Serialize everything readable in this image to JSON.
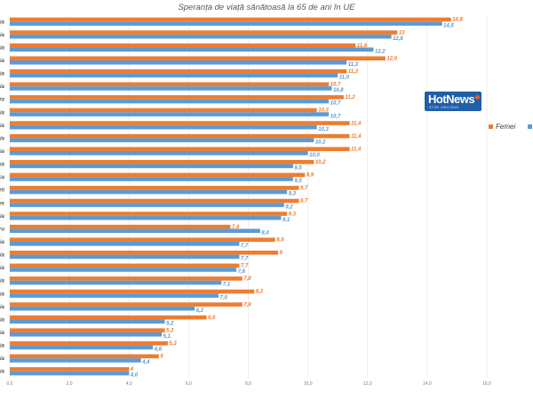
{
  "chart_data": {
    "type": "bar",
    "orientation": "horizontal",
    "title": "Speranța de viață sănătoasă la 65 de ani în UE",
    "series": [
      {
        "name": "Femei",
        "color": "#ed7d31",
        "values": [
          14.8,
          13,
          11.6,
          12.6,
          11.3,
          10.7,
          11.2,
          10.3,
          11.4,
          11.4,
          11.4,
          10.2,
          9.9,
          9.7,
          9.7,
          9.3,
          7.4,
          8.9,
          9,
          7.7,
          7.8,
          8.2,
          7.8,
          6.6,
          5.2,
          5.3,
          5.0,
          4.0
        ]
      },
      {
        "name": "B",
        "color": "#5b9bd5",
        "values": [
          14.5,
          12.8,
          12.2,
          11.3,
          11.0,
          10.8,
          10.7,
          10.7,
          10.3,
          10.2,
          10.0,
          9.5,
          9.5,
          9.3,
          9.2,
          9.1,
          8.4,
          7.7,
          7.7,
          7.6,
          7.1,
          7.0,
          6.2,
          5.2,
          5.1,
          4.8,
          4.4,
          4.0
        ]
      }
    ],
    "labels": {
      "female": [
        "14,8",
        "13",
        "11,6",
        "12,6",
        "11,3",
        "10,7",
        "11,2",
        "10,3",
        "11,4",
        "11,4",
        "11,4",
        "10,2",
        "9,9",
        "9,7",
        "9,7",
        "9,3",
        "7,4",
        "8,9",
        "9",
        "7,7",
        "7,8",
        "8,2",
        "7,8",
        "6,6",
        "5,2",
        "5,3",
        "5",
        "4"
      ],
      "male": [
        "14,5",
        "12,8",
        "12,2",
        "11,3",
        "11,0",
        "10,8",
        "10,7",
        "10,7",
        "10,3",
        "10,2",
        "10,0",
        "9,5",
        "9,5",
        "9,3",
        "9,2",
        "9,1",
        "8,4",
        "7,7",
        "7,7",
        "7,6",
        "7,1",
        "7,0",
        "6,2",
        "5,2",
        "5,1",
        "4,8",
        "4,4",
        "4,0"
      ]
    },
    "categories": [
      "ia",
      "ia",
      "ia",
      "ia",
      "ia",
      "ia",
      "ra",
      "ia",
      "ia",
      "ia",
      "ia",
      "ia",
      "ca",
      "rii",
      "es",
      "ia",
      "ru",
      "ia",
      "ia",
      "ia",
      "ia",
      "ia",
      "ia",
      "ia",
      "ia",
      "ia",
      "ia",
      "ia"
    ],
    "xlim": [
      0,
      16
    ],
    "xticks": [
      "0,0",
      "2,0",
      "4,0",
      "6,0",
      "8,0",
      "10,0",
      "12,0",
      "14,0",
      "16,0"
    ],
    "grid": true,
    "legend_position": "right"
  },
  "logo": {
    "text": "HotNews",
    "sub": "ȘTIRI ORICÂND"
  }
}
